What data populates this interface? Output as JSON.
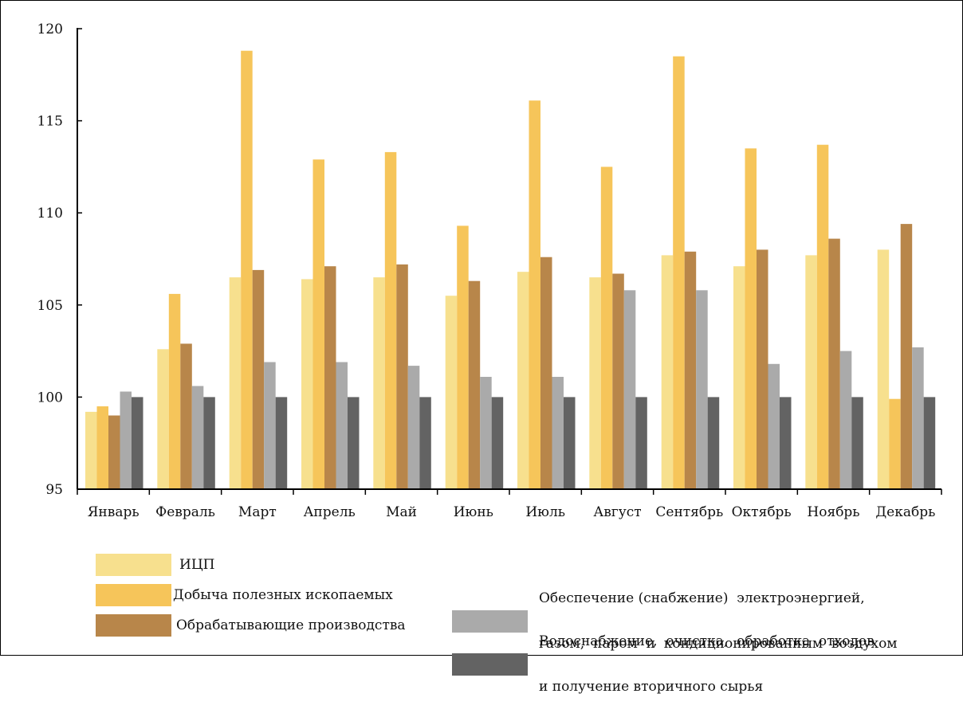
{
  "chart_data": {
    "type": "bar",
    "categories": [
      "Январь",
      "Февраль",
      "Март",
      "Апрель",
      "Май",
      "Июнь",
      "Июль",
      "Август",
      "Сентябрь",
      "Октябрь",
      "Ноябрь",
      "Декабрь"
    ],
    "ylim": [
      95,
      120
    ],
    "yticks": [
      "95",
      "100",
      "105",
      "110",
      "115",
      "120"
    ],
    "series": [
      {
        "name": "ИЦП",
        "color": "#f7e08e",
        "values": [
          99.2,
          102.6,
          106.5,
          106.4,
          106.5,
          105.5,
          106.8,
          106.5,
          107.7,
          107.1,
          107.7,
          108.0
        ]
      },
      {
        "name": "Добыча полезных ископаемых",
        "color": "#f6c55a",
        "values": [
          99.5,
          105.6,
          118.8,
          112.9,
          113.3,
          109.3,
          116.1,
          112.5,
          118.5,
          113.5,
          113.7,
          99.9
        ]
      },
      {
        "name": "Обрабатывающие производства",
        "color": "#b8864a",
        "values": [
          99.0,
          102.9,
          106.9,
          107.1,
          107.2,
          106.3,
          107.6,
          106.7,
          107.9,
          108.0,
          108.6,
          109.4
        ]
      },
      {
        "name": "Обеспечение (снабжение) электроэнергией, газом, паром и кондиционированным воздухом",
        "color": "#aaaaaa",
        "values": [
          100.3,
          100.6,
          101.9,
          101.9,
          101.7,
          101.1,
          101.1,
          105.8,
          105.8,
          101.8,
          102.5,
          102.7
        ]
      },
      {
        "name": "Водоснабжение, очистка, обработка отходов и получение вторичного сырья",
        "color": "#636363",
        "values": [
          100.0,
          100.0,
          100.0,
          100.0,
          100.0,
          100.0,
          100.0,
          100.0,
          100.0,
          100.0,
          100.0,
          100.0
        ]
      }
    ],
    "legend": {
      "left": [
        {
          "label": "ИЦП",
          "color": "#f7e08e"
        },
        {
          "label": "Добыча полезных ископаемых",
          "color": "#f6c55a"
        },
        {
          "label": "Обрабатывающие производства",
          "color": "#b8864a"
        }
      ],
      "right": [
        {
          "line1": "Обеспечение (снабжение)  электроэнергией,",
          "line2": "газом,  паром  и  кондиционированным  воздухом",
          "color": "#aaaaaa"
        },
        {
          "line1": "Водоснабжение,  очистка,  обработка  отходов",
          "line2": "и получение вторичного сырья",
          "color": "#636363"
        }
      ]
    },
    "grid": false,
    "legend_position": "bottom"
  }
}
